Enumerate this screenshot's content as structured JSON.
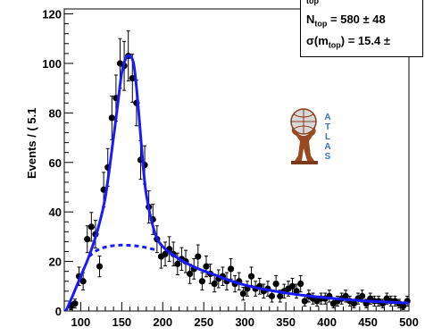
{
  "chart_data": {
    "type": "scatter",
    "ylabel": "Events / ( 5.1",
    "xlim": [
      80,
      500
    ],
    "ylim": [
      0,
      122
    ],
    "x_ticks": [
      100,
      150,
      200,
      250,
      300,
      350,
      400,
      450,
      500
    ],
    "y_ticks": [
      0,
      20,
      40,
      60,
      80,
      100,
      120
    ],
    "series": [
      {
        "kind": "data-points",
        "color": "#000000",
        "x": [
          88,
          93,
          98,
          103,
          108,
          113,
          118,
          123,
          128,
          133,
          138,
          143,
          148,
          153,
          158,
          163,
          168,
          173,
          178,
          183,
          188,
          193,
          198,
          203,
          208,
          213,
          218,
          223,
          228,
          233,
          238,
          243,
          248,
          253,
          258,
          263,
          268,
          273,
          278,
          283,
          288,
          293,
          298,
          303,
          308,
          313,
          318,
          323,
          328,
          333,
          338,
          343,
          348,
          353,
          358,
          363,
          368,
          373,
          378,
          383,
          388,
          393,
          398,
          403,
          408,
          413,
          418,
          423,
          428,
          433,
          438,
          443,
          448,
          453,
          458,
          463,
          468,
          473,
          478,
          483,
          488,
          493,
          498
        ],
        "y": [
          2,
          3,
          14,
          12,
          29,
          34,
          31,
          18,
          49,
          58,
          78,
          86,
          100,
          99,
          103,
          94,
          84,
          61,
          59,
          42,
          37,
          29,
          22,
          23,
          25,
          23,
          19,
          21,
          20,
          15,
          17,
          22,
          12,
          18,
          15,
          11,
          13,
          14,
          12,
          17,
          11,
          12,
          7,
          9,
          14,
          9,
          10,
          8,
          9,
          6,
          11,
          6,
          8,
          9,
          10,
          8,
          11,
          4,
          6,
          5,
          4,
          5,
          5,
          6,
          3,
          4,
          5,
          6,
          4,
          3,
          5,
          6,
          3,
          5,
          4,
          4,
          3,
          5,
          4,
          4,
          3,
          2,
          4
        ],
        "yerr": [
          1.5,
          1.8,
          3.7,
          3.5,
          5.4,
          5.8,
          5.6,
          4.2,
          7,
          7.6,
          8.8,
          9.3,
          10,
          9.9,
          10.1,
          9.7,
          9.2,
          7.8,
          7.7,
          6.5,
          6.1,
          5.4,
          4.7,
          4.8,
          5,
          4.8,
          4.4,
          4.6,
          4.5,
          3.9,
          4.1,
          4.7,
          3.5,
          4.2,
          3.9,
          3.3,
          3.6,
          3.7,
          3.5,
          4.1,
          3.3,
          3.5,
          2.6,
          3,
          3.7,
          3,
          3.2,
          2.8,
          3,
          2.4,
          3.3,
          2.4,
          2.8,
          3,
          3.2,
          2.8,
          3.3,
          2,
          2.4,
          2.2,
          2,
          2.2,
          2.2,
          2.4,
          1.7,
          2,
          2.2,
          2.4,
          2,
          1.7,
          2.2,
          2.4,
          1.7,
          2.2,
          2,
          2,
          1.7,
          2.2,
          2,
          2,
          1.7,
          1.4,
          2
        ]
      },
      {
        "kind": "total-fit",
        "color": "#1a1aff",
        "style": "solid",
        "x": [
          82,
          90,
          100,
          110,
          120,
          130,
          140,
          145,
          150,
          155,
          160,
          165,
          170,
          175,
          180,
          190,
          200,
          220,
          240,
          260,
          280,
          300,
          320,
          340,
          360,
          380,
          400,
          420,
          440,
          460,
          480,
          500
        ],
        "y": [
          0,
          6,
          14,
          22,
          32,
          46,
          70,
          83,
          96,
          102,
          103,
          99,
          83,
          63,
          47,
          32,
          26,
          21,
          17.5,
          15,
          12.5,
          10.5,
          9,
          7.8,
          6.8,
          6,
          5.3,
          4.7,
          4.2,
          3.8,
          3.5,
          3.2
        ]
      },
      {
        "kind": "background-fit",
        "color": "#1a1aff",
        "style": "dashed",
        "x": [
          110,
          120,
          130,
          140,
          150,
          160,
          170,
          180,
          190
        ],
        "y": [
          22,
          24.5,
          25.8,
          26.4,
          26.6,
          26.5,
          26.2,
          25.6,
          24.8
        ]
      }
    ]
  },
  "stats_box": {
    "cut_label": "top",
    "line1_symbol": "N",
    "line1_sub": "top",
    "line1_value": "=  580 ± 48",
    "line2_symbol": "σ(m",
    "line2_sub": "top",
    "line2_value": ")  =  15.4 ±"
  },
  "logo_text": [
    "A",
    "T",
    "L",
    "A",
    "S"
  ]
}
